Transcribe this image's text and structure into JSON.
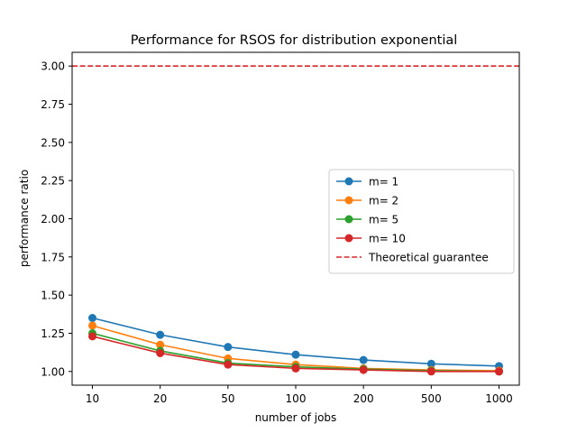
{
  "chart_data": {
    "type": "line",
    "title": "Performance for RSOS for distribution exponential",
    "xlabel": "number of jobs",
    "ylabel": "performance ratio",
    "categories": [
      "10",
      "20",
      "50",
      "100",
      "200",
      "500",
      "1000"
    ],
    "ylim": [
      0.91,
      3.09
    ],
    "yticks": [
      "1.00",
      "1.25",
      "1.50",
      "1.75",
      "2.00",
      "2.25",
      "2.50",
      "2.75",
      "3.00"
    ],
    "grid": false,
    "legend_position": "center-right",
    "series": [
      {
        "name": "m= 1",
        "color": "#1f77b4",
        "values": [
          1.35,
          1.24,
          1.16,
          1.11,
          1.075,
          1.05,
          1.035
        ]
      },
      {
        "name": "m= 2",
        "color": "#ff7f0e",
        "values": [
          1.3,
          1.175,
          1.085,
          1.045,
          1.02,
          1.01,
          1.005
        ]
      },
      {
        "name": "m= 5",
        "color": "#2ca02c",
        "values": [
          1.25,
          1.135,
          1.055,
          1.03,
          1.015,
          1.005,
          1.0
        ]
      },
      {
        "name": "m= 10",
        "color": "#d62728",
        "values": [
          1.23,
          1.12,
          1.045,
          1.02,
          1.01,
          1.0,
          1.0
        ]
      }
    ],
    "reference_lines": [
      {
        "name": "Theoretical guarantee",
        "color": "#d62728",
        "style": "dashed",
        "value": 3.0
      }
    ]
  }
}
